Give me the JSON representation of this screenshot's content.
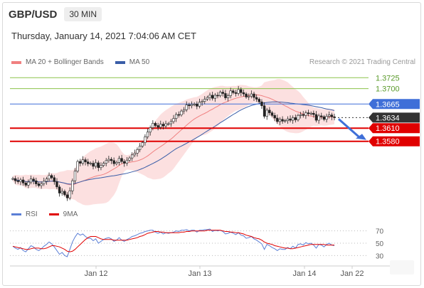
{
  "header": {
    "symbol": "GBP/USD",
    "timeframe": "30 MIN"
  },
  "datetime": "Thursday, January 14, 2021 7:04:06 AM CET",
  "credit": "Research © 2021 Trading Central",
  "legend": {
    "ma20": "MA 20 + Bollinger Bands",
    "ma50": "MA 50",
    "rsi": "RSI",
    "ma9": "9MA"
  },
  "colors": {
    "ma20": "#f08080",
    "bands": "#f9c6c6",
    "ma50": "#3a5ea8",
    "resistance": "#8bc34a",
    "pivot": "#3f6fd8",
    "support": "#e00000",
    "current": "#333333",
    "rsi": "#5b7fd6",
    "ma9": "#e00000",
    "arrow": "#3f6fd8"
  },
  "chart_data": [
    {
      "type": "candlestick",
      "x_tick_labels": [
        "Jan 12",
        "Jan 13",
        "Jan 14",
        "Jan 22"
      ],
      "ylim": [
        1.3432,
        1.374
      ],
      "levels": [
        {
          "label": "1.3725",
          "value": 1.3725,
          "kind": "resistance"
        },
        {
          "label": "1.3700",
          "value": 1.37,
          "kind": "resistance"
        },
        {
          "label": "1.3665",
          "value": 1.3665,
          "kind": "pivot"
        },
        {
          "label": "1.3634",
          "value": 1.3634,
          "kind": "current"
        },
        {
          "label": "1.3610",
          "value": 1.361,
          "kind": "support"
        },
        {
          "label": "1.3580",
          "value": 1.358,
          "kind": "support"
        }
      ],
      "close": [
        1.3495,
        1.349,
        1.3488,
        1.3492,
        1.3485,
        1.348,
        1.3487,
        1.3494,
        1.349,
        1.3483,
        1.3479,
        1.3483,
        1.3489,
        1.3494,
        1.3502,
        1.3497,
        1.3488,
        1.3476,
        1.3462,
        1.3466,
        1.3458,
        1.3451,
        1.3467,
        1.349,
        1.3512,
        1.3534,
        1.353,
        1.3538,
        1.3533,
        1.3529,
        1.353,
        1.3523,
        1.3531,
        1.352,
        1.3525,
        1.353,
        1.3536,
        1.3539,
        1.3536,
        1.3529,
        1.3532,
        1.3541,
        1.3534,
        1.353,
        1.3537,
        1.3542,
        1.3549,
        1.3553,
        1.3561,
        1.3569,
        1.3577,
        1.359,
        1.3601,
        1.3611,
        1.3621,
        1.3616,
        1.3612,
        1.3619,
        1.3615,
        1.362,
        1.362,
        1.3625,
        1.3632,
        1.3641,
        1.364,
        1.3649,
        1.3652,
        1.3663,
        1.3661,
        1.3664,
        1.3665,
        1.366,
        1.3669,
        1.3671,
        1.3676,
        1.368,
        1.3685,
        1.3678,
        1.3685,
        1.3684,
        1.3692,
        1.3689,
        1.3679,
        1.3684,
        1.3695,
        1.3691,
        1.3689,
        1.3698,
        1.3691,
        1.3688,
        1.3681,
        1.3683,
        1.3688,
        1.368,
        1.3676,
        1.367,
        1.3661,
        1.3637,
        1.3651,
        1.3645,
        1.3639,
        1.3633,
        1.3625,
        1.363,
        1.3626,
        1.3627,
        1.3631,
        1.3628,
        1.3634,
        1.3629,
        1.3639,
        1.3641,
        1.3639,
        1.3645,
        1.3643,
        1.3644,
        1.3641,
        1.3628,
        1.3638,
        1.3636,
        1.363,
        1.3637,
        1.364,
        1.3636,
        1.3634
      ]
    },
    {
      "type": "line",
      "name": "RSI",
      "ylim": [
        20,
        80
      ],
      "y_tick_labels": [
        "70",
        "50",
        "30"
      ],
      "y_ticks": [
        70,
        50,
        30
      ],
      "rsi": [
        45,
        42,
        40,
        43,
        38,
        36,
        41,
        46,
        44,
        40,
        38,
        41,
        45,
        48,
        52,
        49,
        44,
        38,
        32,
        35,
        30,
        28,
        40,
        52,
        60,
        66,
        63,
        65,
        61,
        58,
        58,
        54,
        57,
        50,
        53,
        56,
        58,
        59,
        57,
        53,
        55,
        59,
        55,
        53,
        56,
        58,
        61,
        62,
        64,
        66,
        67,
        69,
        70,
        71,
        71,
        68,
        66,
        68,
        65,
        67,
        66,
        67,
        68,
        70,
        69,
        71,
        71,
        72,
        70,
        71,
        71,
        68,
        71,
        71,
        72,
        72,
        73,
        69,
        71,
        70,
        71,
        69,
        65,
        66,
        68,
        66,
        64,
        67,
        63,
        62,
        58,
        59,
        61,
        57,
        55,
        52,
        49,
        40,
        48,
        46,
        43,
        41,
        38,
        41,
        40,
        40,
        43,
        41,
        45,
        42,
        48,
        49,
        47,
        51,
        49,
        50,
        47,
        42,
        48,
        47,
        44,
        48,
        50,
        47,
        46
      ],
      "ma9": [
        45,
        44,
        43,
        42,
        41,
        40,
        40,
        41,
        42,
        42,
        42,
        41,
        41,
        42,
        44,
        46,
        46,
        45,
        44,
        42,
        40,
        37,
        36,
        37,
        40,
        44,
        48,
        52,
        56,
        59,
        61,
        61,
        61,
        59,
        57,
        56,
        56,
        56,
        56,
        55,
        55,
        55,
        55,
        55,
        55,
        56,
        57,
        58,
        59,
        61,
        62,
        64,
        66,
        67,
        68,
        69,
        69,
        68,
        68,
        67,
        67,
        67,
        67,
        67,
        67,
        68,
        68,
        69,
        69,
        70,
        70,
        70,
        70,
        70,
        70,
        71,
        71,
        71,
        71,
        71,
        71,
        70,
        69,
        69,
        68,
        68,
        67,
        67,
        66,
        65,
        63,
        62,
        61,
        59,
        58,
        57,
        55,
        52,
        50,
        49,
        48,
        46,
        45,
        44,
        43,
        42,
        42,
        41,
        41,
        42,
        43,
        44,
        45,
        46,
        47,
        48,
        48,
        48,
        48,
        48,
        48,
        47,
        47,
        47,
        47
      ]
    }
  ]
}
